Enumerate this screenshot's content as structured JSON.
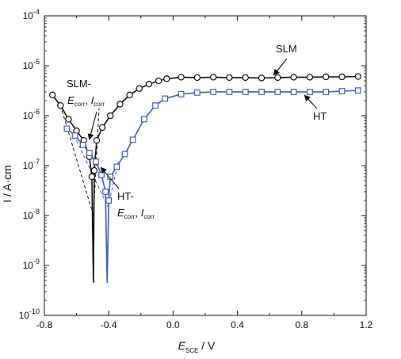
{
  "chart_data": {
    "type": "line",
    "xlabel": {
      "main": "E",
      "sub": "SCE",
      "unit": " / V"
    },
    "ylabel": "I / A·cm",
    "xlim": [
      -0.8,
      1.2
    ],
    "ylim_log10": [
      -10,
      -4
    ],
    "y_scale": "log",
    "x_ticks": [
      "-0.8",
      "-0.4",
      "0.0",
      "0.4",
      "0.8",
      "1.2"
    ],
    "y_ticks": [
      {
        "base": "10",
        "exp": "-10"
      },
      {
        "base": "10",
        "exp": "-9"
      },
      {
        "base": "10",
        "exp": "-8"
      },
      {
        "base": "10",
        "exp": "-7"
      },
      {
        "base": "10",
        "exp": "-6"
      },
      {
        "base": "10",
        "exp": "-5"
      },
      {
        "base": "10",
        "exp": "-4"
      }
    ],
    "series": [
      {
        "name": "SLM",
        "color": "#111111",
        "marker": "circle",
        "points": [
          [
            -0.75,
            2.6e-06
          ],
          [
            -0.7,
            1.6e-06
          ],
          [
            -0.65,
            8.5e-07
          ],
          [
            -0.6,
            5e-07
          ],
          [
            -0.555,
            3.2e-07
          ],
          [
            -0.52,
            1.5e-07
          ],
          [
            -0.505,
            6e-08
          ],
          [
            -0.495,
            4.5e-10
          ],
          [
            -0.49,
            8e-08
          ],
          [
            -0.475,
            3.2e-07
          ],
          [
            -0.44,
            5.8e-07
          ],
          [
            -0.39,
            1e-06
          ],
          [
            -0.33,
            1.7e-06
          ],
          [
            -0.27,
            2.6e-06
          ],
          [
            -0.21,
            3.5e-06
          ],
          [
            -0.15,
            4.3e-06
          ],
          [
            -0.09,
            5e-06
          ],
          [
            -0.04,
            5.5e-06
          ],
          [
            0.05,
            5.9e-06
          ],
          [
            0.15,
            5.8e-06
          ],
          [
            0.25,
            5.9e-06
          ],
          [
            0.35,
            5.8e-06
          ],
          [
            0.45,
            5.8e-06
          ],
          [
            0.55,
            5.7e-06
          ],
          [
            0.65,
            5.8e-06
          ],
          [
            0.75,
            5.9e-06
          ],
          [
            0.85,
            5.9e-06
          ],
          [
            0.95,
            6e-06
          ],
          [
            1.05,
            6e-06
          ],
          [
            1.15,
            6.1e-06
          ]
        ]
      },
      {
        "name": "HT",
        "color": "#3f5fb0",
        "marker": "square",
        "points": [
          [
            -0.66,
            5.5e-07
          ],
          [
            -0.61,
            4e-07
          ],
          [
            -0.56,
            2.6e-07
          ],
          [
            -0.52,
            1.8e-07
          ],
          [
            -0.48,
            1.2e-07
          ],
          [
            -0.445,
            6.5e-08
          ],
          [
            -0.42,
            3e-08
          ],
          [
            -0.41,
            4.5e-10
          ],
          [
            -0.4,
            2e-08
          ],
          [
            -0.39,
            6e-08
          ],
          [
            -0.35,
            9.5e-08
          ],
          [
            -0.3,
            1.7e-07
          ],
          [
            -0.25,
            3.3e-07
          ],
          [
            -0.18,
            8.5e-07
          ],
          [
            -0.11,
            1.6e-06
          ],
          [
            -0.05,
            2.2e-06
          ],
          [
            0.05,
            2.7e-06
          ],
          [
            0.15,
            2.9e-06
          ],
          [
            0.25,
            3e-06
          ],
          [
            0.35,
            3e-06
          ],
          [
            0.45,
            3e-06
          ],
          [
            0.55,
            3e-06
          ],
          [
            0.65,
            3e-06
          ],
          [
            0.75,
            3e-06
          ],
          [
            0.85,
            3e-06
          ],
          [
            0.95,
            3e-06
          ],
          [
            1.05,
            3.1e-06
          ],
          [
            1.15,
            3.2e-06
          ]
        ]
      }
    ],
    "tafel_lines": [
      {
        "series": "SLM",
        "color": "#111111",
        "lines": [
          [
            [
              -0.7,
              1.6e-06
            ],
            [
              -0.495,
              1e-08
            ]
          ],
          [
            [
              -0.495,
              1e-08
            ],
            [
              -0.46,
              1.4e-06
            ]
          ]
        ]
      },
      {
        "series": "HT",
        "color": "#3f5fb0",
        "lines": [
          [
            [
              -0.6,
              3.2e-07
            ],
            [
              -0.405,
              1.5e-08
            ]
          ],
          [
            [
              -0.405,
              1.5e-08
            ],
            [
              -0.34,
              1.2e-07
            ]
          ]
        ]
      }
    ],
    "annotations": {
      "slm_label": "SLM",
      "ht_label": "HT",
      "slm_corr_title": "SLM-",
      "ht_corr_title": "HT-",
      "corr_E": "E",
      "corr_E_sub": "corr",
      "corr_sep": ", ",
      "corr_I": "I",
      "corr_I_sub": "corr"
    }
  }
}
